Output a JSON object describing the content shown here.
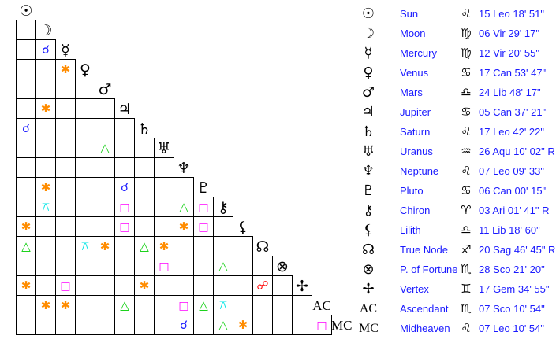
{
  "aspect_colors": {
    "conjunction": "#1a1aff",
    "sextile": "#ff8c00",
    "trine": "#00cc00",
    "square": "#ff00ff",
    "opposition": "#ff0000",
    "quincunx": "#00e5e5"
  },
  "aspect_symbols": {
    "conjunction": "☌",
    "sextile": "✱",
    "trine": "△",
    "square": "□",
    "opposition": "☍",
    "quincunx": "⚻"
  },
  "planets": [
    {
      "glyph": "☉",
      "name": "Sun",
      "sign": "♌",
      "position": "15 Leo 18' 51\""
    },
    {
      "glyph": "☽",
      "name": "Moon",
      "sign": "♍",
      "position": "06 Vir 29' 17\""
    },
    {
      "glyph": "☿",
      "name": "Mercury",
      "sign": "♍",
      "position": "12 Vir 20' 55\""
    },
    {
      "glyph": "♀",
      "name": "Venus",
      "sign": "♋",
      "position": "17 Can 53' 47\""
    },
    {
      "glyph": "♂",
      "name": "Mars",
      "sign": "♎",
      "position": "24 Lib 48' 17\""
    },
    {
      "glyph": "♃",
      "name": "Jupiter",
      "sign": "♋",
      "position": "05 Can 37' 21\""
    },
    {
      "glyph": "♄",
      "name": "Saturn",
      "sign": "♌",
      "position": "17 Leo 42' 22\""
    },
    {
      "glyph": "♅",
      "name": "Uranus",
      "sign": "♒",
      "position": "26 Aqu 10' 02\" R"
    },
    {
      "glyph": "♆",
      "name": "Neptune",
      "sign": "♌",
      "position": "07 Leo 09' 33\""
    },
    {
      "glyph": "♇",
      "name": "Pluto",
      "sign": "♋",
      "position": "06 Can 00' 15\""
    },
    {
      "glyph": "⚷",
      "name": "Chiron",
      "sign": "♈",
      "position": "03 Ari 01' 41\" R"
    },
    {
      "glyph": "⚸",
      "name": "Lilith",
      "sign": "♎",
      "position": "11 Lib 18' 60\""
    },
    {
      "glyph": "☊",
      "name": "True Node",
      "sign": "♐",
      "position": "20 Sag 46' 45\" R"
    },
    {
      "glyph": "⊗",
      "name": "P. of Fortune",
      "sign": "♏",
      "position": "28 Sco 21' 20\""
    },
    {
      "glyph": "✢",
      "name": "Vertex",
      "sign": "♊",
      "position": "17 Gem 34' 55\""
    },
    {
      "glyph": "AC",
      "name": "Ascendant",
      "sign": "♏",
      "position": "07 Sco 10' 54\""
    },
    {
      "glyph": "MC",
      "name": "Midheaven",
      "sign": "♌",
      "position": "07 Leo 10' 54\""
    }
  ],
  "aspects": [
    [
      "Mercury",
      "Moon",
      "conjunction"
    ],
    [
      "Venus",
      "Mercury",
      "sextile"
    ],
    [
      "Jupiter",
      "Moon",
      "sextile"
    ],
    [
      "Saturn",
      "Sun",
      "conjunction"
    ],
    [
      "Uranus",
      "Mars",
      "trine"
    ],
    [
      "Pluto",
      "Moon",
      "sextile"
    ],
    [
      "Pluto",
      "Jupiter",
      "conjunction"
    ],
    [
      "Chiron",
      "Moon",
      "quincunx"
    ],
    [
      "Chiron",
      "Jupiter",
      "square"
    ],
    [
      "Chiron",
      "Neptune",
      "trine"
    ],
    [
      "Chiron",
      "Pluto",
      "square"
    ],
    [
      "Lilith",
      "Sun",
      "sextile"
    ],
    [
      "Lilith",
      "Jupiter",
      "square"
    ],
    [
      "Lilith",
      "Neptune",
      "sextile"
    ],
    [
      "Lilith",
      "Pluto",
      "square"
    ],
    [
      "True Node",
      "Sun",
      "trine"
    ],
    [
      "True Node",
      "Venus",
      "quincunx"
    ],
    [
      "True Node",
      "Mars",
      "sextile"
    ],
    [
      "True Node",
      "Saturn",
      "trine"
    ],
    [
      "True Node",
      "Uranus",
      "sextile"
    ],
    [
      "P. of Fortune",
      "Uranus",
      "square"
    ],
    [
      "P. of Fortune",
      "Chiron",
      "trine"
    ],
    [
      "Vertex",
      "Sun",
      "sextile"
    ],
    [
      "Vertex",
      "Mercury",
      "square"
    ],
    [
      "Vertex",
      "Saturn",
      "sextile"
    ],
    [
      "Vertex",
      "True Node",
      "opposition"
    ],
    [
      "Ascendant",
      "Moon",
      "sextile"
    ],
    [
      "Ascendant",
      "Mercury",
      "sextile"
    ],
    [
      "Ascendant",
      "Jupiter",
      "trine"
    ],
    [
      "Ascendant",
      "Neptune",
      "square"
    ],
    [
      "Ascendant",
      "Pluto",
      "trine"
    ],
    [
      "Ascendant",
      "Chiron",
      "quincunx"
    ],
    [
      "Midheaven",
      "Neptune",
      "conjunction"
    ],
    [
      "Midheaven",
      "Chiron",
      "trine"
    ],
    [
      "Midheaven",
      "Lilith",
      "sextile"
    ],
    [
      "Midheaven",
      "Ascendant",
      "square"
    ]
  ]
}
